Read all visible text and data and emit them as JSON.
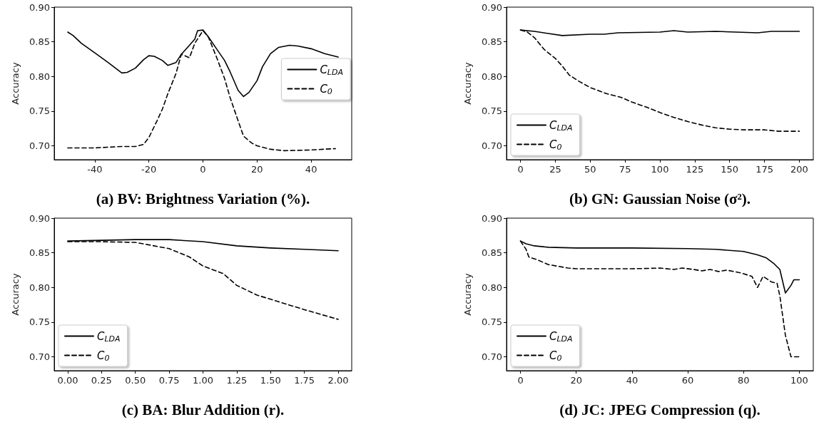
{
  "chart_data": [
    {
      "type": "line",
      "xlabel": "(a) BV: Brightness Variation (%).",
      "ylabel": "Accuracy",
      "xlim": [
        -55,
        55
      ],
      "xticks": [
        -40,
        -20,
        0,
        20,
        40
      ],
      "ylim": [
        0.68,
        0.9
      ],
      "yticks": [
        {
          "value": 0.7,
          "label": "0.70"
        },
        {
          "value": 0.75,
          "label": "0.75"
        },
        {
          "value": 0.8,
          "label": "0.80"
        },
        {
          "value": 0.85,
          "label": "0.85"
        },
        {
          "value": 0.9,
          "label": "0.90"
        }
      ],
      "legend": "right",
      "grid": false,
      "marker": "none",
      "series": [
        {
          "name": "C$_{LDA}$",
          "color": "#000000",
          "line_style": "solid",
          "x": [
            -50,
            -48,
            -45,
            -40,
            -35,
            -30,
            -28,
            -25,
            -22,
            -20,
            -18,
            -15,
            -13,
            -10,
            -8,
            -5,
            -3,
            -2,
            0,
            2,
            5,
            8,
            10,
            13,
            15,
            17,
            20,
            22,
            25,
            28,
            32,
            35,
            40,
            45,
            50
          ],
          "values": [
            0.864,
            0.859,
            0.848,
            0.834,
            0.82,
            0.805,
            0.806,
            0.812,
            0.824,
            0.83,
            0.829,
            0.823,
            0.816,
            0.82,
            0.832,
            0.845,
            0.854,
            0.866,
            0.867,
            0.857,
            0.84,
            0.823,
            0.807,
            0.78,
            0.771,
            0.777,
            0.794,
            0.814,
            0.833,
            0.842,
            0.845,
            0.844,
            0.84,
            0.833,
            0.828
          ]
        },
        {
          "name": "C$_{0}$",
          "color": "#000000",
          "line_style": "dashed",
          "x": [
            -50,
            -40,
            -30,
            -25,
            -22,
            -20,
            -17,
            -15,
            -13,
            -10,
            -8,
            -5,
            -3,
            0,
            2,
            5,
            8,
            10,
            13,
            15,
            18,
            20,
            25,
            30,
            40,
            49
          ],
          "values": [
            0.697,
            0.697,
            0.699,
            0.699,
            0.702,
            0.712,
            0.736,
            0.753,
            0.775,
            0.804,
            0.832,
            0.827,
            0.848,
            0.866,
            0.857,
            0.828,
            0.797,
            0.77,
            0.736,
            0.714,
            0.704,
            0.7,
            0.695,
            0.693,
            0.694,
            0.696
          ]
        }
      ]
    },
    {
      "type": "line",
      "xlabel": "(b) GN: Gaussian Noise (σ²).",
      "ylabel": "Accuracy",
      "xlim": [
        -10,
        210
      ],
      "xticks": [
        0,
        25,
        50,
        75,
        100,
        125,
        150,
        175,
        200
      ],
      "ylim": [
        0.68,
        0.9
      ],
      "yticks": [
        {
          "value": 0.7,
          "label": "0.70"
        },
        {
          "value": 0.75,
          "label": "0.75"
        },
        {
          "value": 0.8,
          "label": "0.80"
        },
        {
          "value": 0.85,
          "label": "0.85"
        },
        {
          "value": 0.9,
          "label": "0.90"
        }
      ],
      "legend": "bottom left",
      "grid": false,
      "marker": "none",
      "series": [
        {
          "name": "C$_{LDA}$",
          "color": "#000000",
          "line_style": "solid",
          "x": [
            0,
            10,
            20,
            30,
            50,
            60,
            70,
            100,
            110,
            120,
            140,
            170,
            180,
            200
          ],
          "values": [
            0.867,
            0.865,
            0.862,
            0.859,
            0.861,
            0.861,
            0.863,
            0.864,
            0.866,
            0.864,
            0.865,
            0.863,
            0.865,
            0.865
          ]
        },
        {
          "name": "C$_{0}$",
          "color": "#000000",
          "line_style": "dashed",
          "x": [
            0,
            5,
            10,
            17,
            25,
            30,
            35,
            42,
            50,
            62,
            72,
            80,
            90,
            100,
            110,
            120,
            130,
            140,
            150,
            160,
            175,
            185,
            200
          ],
          "values": [
            0.867,
            0.864,
            0.856,
            0.839,
            0.826,
            0.815,
            0.802,
            0.793,
            0.784,
            0.775,
            0.77,
            0.763,
            0.756,
            0.748,
            0.741,
            0.735,
            0.73,
            0.726,
            0.724,
            0.723,
            0.723,
            0.721,
            0.721
          ]
        }
      ]
    },
    {
      "type": "line",
      "xlabel": "(c) BA: Blur Addition (r).",
      "ylabel": "Accuracy",
      "xlim": [
        -0.1,
        2.1
      ],
      "xticks": [
        {
          "value": 0,
          "label": "0.00"
        },
        {
          "value": 0.25,
          "label": "0.25"
        },
        {
          "value": 0.5,
          "label": "0.50"
        },
        {
          "value": 0.75,
          "label": "0.75"
        },
        {
          "value": 1,
          "label": "1.00"
        },
        {
          "value": 1.25,
          "label": "1.25"
        },
        {
          "value": 1.5,
          "label": "1.50"
        },
        {
          "value": 1.75,
          "label": "1.75"
        },
        {
          "value": 2,
          "label": "2.00"
        }
      ],
      "ylim": [
        0.68,
        0.9
      ],
      "yticks": [
        {
          "value": 0.7,
          "label": "0.70"
        },
        {
          "value": 0.75,
          "label": "0.75"
        },
        {
          "value": 0.8,
          "label": "0.80"
        },
        {
          "value": 0.85,
          "label": "0.85"
        },
        {
          "value": 0.9,
          "label": "0.90"
        }
      ],
      "legend": "bottom left",
      "grid": false,
      "marker": "none",
      "series": [
        {
          "name": "C$_{LDA}$",
          "color": "#000000",
          "line_style": "solid",
          "x": [
            0,
            0.25,
            0.5,
            0.75,
            1,
            1.25,
            1.5,
            1.75,
            2
          ],
          "values": [
            0.867,
            0.868,
            0.869,
            0.869,
            0.866,
            0.86,
            0.857,
            0.855,
            0.853
          ]
        },
        {
          "name": "C$_{0}$",
          "color": "#000000",
          "line_style": "dashed",
          "x": [
            0,
            0.25,
            0.5,
            0.75,
            0.9,
            1,
            1.15,
            1.25,
            1.4,
            1.5,
            1.75,
            2
          ],
          "values": [
            0.866,
            0.866,
            0.865,
            0.856,
            0.844,
            0.831,
            0.82,
            0.803,
            0.789,
            0.783,
            0.768,
            0.754
          ]
        }
      ]
    },
    {
      "type": "line",
      "xlabel": "(d) JC: JPEG Compression (q).",
      "ylabel": "Accuracy",
      "xlim": [
        -5,
        105
      ],
      "xticks": [
        0,
        20,
        40,
        60,
        80,
        100
      ],
      "ylim": [
        0.68,
        0.9
      ],
      "yticks": [
        {
          "value": 0.7,
          "label": "0.70"
        },
        {
          "value": 0.75,
          "label": "0.75"
        },
        {
          "value": 0.8,
          "label": "0.80"
        },
        {
          "value": 0.85,
          "label": "0.85"
        },
        {
          "value": 0.9,
          "label": "0.90"
        }
      ],
      "legend": "bottom left",
      "grid": false,
      "marker": "none",
      "series": [
        {
          "name": "C$_{LDA}$",
          "color": "#000000",
          "line_style": "solid",
          "x": [
            0,
            2,
            5,
            10,
            20,
            40,
            60,
            70,
            80,
            85,
            88,
            91,
            93,
            95,
            97,
            98,
            100
          ],
          "values": [
            0.867,
            0.863,
            0.86,
            0.858,
            0.857,
            0.857,
            0.856,
            0.855,
            0.852,
            0.847,
            0.843,
            0.834,
            0.826,
            0.792,
            0.803,
            0.811,
            0.811
          ]
        },
        {
          "name": "C$_{0}$",
          "color": "#000000",
          "line_style": "dashed",
          "x": [
            0,
            2,
            3,
            6,
            10,
            17,
            20,
            40,
            50,
            55,
            58,
            62,
            65,
            68,
            71,
            74,
            79,
            83,
            85,
            87,
            90,
            92,
            93,
            95,
            97,
            100
          ],
          "values": [
            0.867,
            0.855,
            0.844,
            0.84,
            0.833,
            0.828,
            0.827,
            0.827,
            0.828,
            0.826,
            0.828,
            0.826,
            0.824,
            0.826,
            0.823,
            0.825,
            0.821,
            0.816,
            0.8,
            0.816,
            0.808,
            0.806,
            0.788,
            0.731,
            0.7,
            0.7
          ]
        }
      ]
    }
  ]
}
